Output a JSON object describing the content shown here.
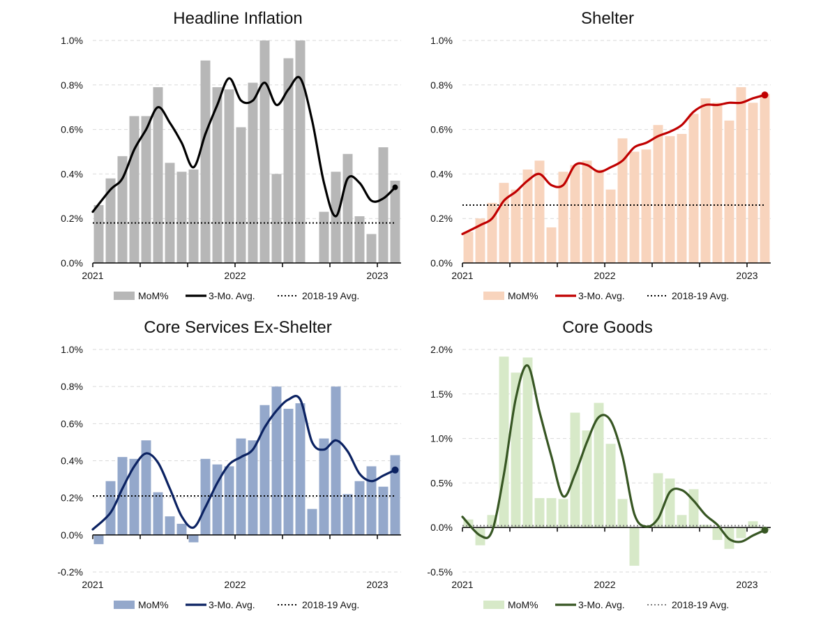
{
  "chart_data": [
    {
      "type": "bar",
      "title": "Headline Inflation",
      "colors": {
        "bar": "#b7b7b7",
        "line": "#000000",
        "ref": "#000000"
      },
      "ylim": [
        0,
        1.0
      ],
      "yticks": [
        0,
        0.2,
        0.4,
        0.6,
        0.8,
        1.0
      ],
      "ytick_labels": [
        "0.0%",
        "0.2%",
        "0.4%",
        "0.6%",
        "0.8%",
        "1.0%"
      ],
      "xtick_labels": [
        "2021",
        "2022",
        "2023"
      ],
      "months": [
        "2021-01",
        "2021-02",
        "2021-03",
        "2021-04",
        "2021-05",
        "2021-06",
        "2021-07",
        "2021-08",
        "2021-09",
        "2021-10",
        "2021-11",
        "2021-12",
        "2022-01",
        "2022-02",
        "2022-03",
        "2022-04",
        "2022-05",
        "2022-06",
        "2022-07",
        "2022-08",
        "2022-09",
        "2022-10",
        "2022-11",
        "2022-12",
        "2023-01",
        "2023-02"
      ],
      "series": [
        {
          "name": "MoM%",
          "kind": "bar",
          "values": [
            0.26,
            0.38,
            0.48,
            0.66,
            0.66,
            0.79,
            0.45,
            0.41,
            0.42,
            0.91,
            0.79,
            0.78,
            0.61,
            0.81,
            1.0,
            0.4,
            0.92,
            1.0,
            0.0,
            0.23,
            0.41,
            0.49,
            0.21,
            0.13,
            0.52,
            0.37
          ]
        },
        {
          "name": "3-Mo. Avg.",
          "kind": "line",
          "values": [
            0.23,
            0.33,
            0.38,
            0.51,
            0.6,
            0.7,
            0.63,
            0.54,
            0.43,
            0.58,
            0.71,
            0.83,
            0.73,
            0.73,
            0.81,
            0.71,
            0.78,
            0.83,
            0.64,
            0.36,
            0.21,
            0.38,
            0.36,
            0.28,
            0.29,
            0.34
          ]
        },
        {
          "name": "2018-19 Avg.",
          "kind": "ref",
          "value": 0.18
        }
      ]
    },
    {
      "type": "bar",
      "title": "Shelter",
      "colors": {
        "bar": "#f8d4bd",
        "line": "#c00000",
        "ref": "#000000"
      },
      "ylim": [
        0,
        1.0
      ],
      "yticks": [
        0,
        0.2,
        0.4,
        0.6,
        0.8,
        1.0
      ],
      "ytick_labels": [
        "0.0%",
        "0.2%",
        "0.4%",
        "0.6%",
        "0.8%",
        "1.0%"
      ],
      "xtick_labels": [
        "2021",
        "2022",
        "2023"
      ],
      "months": [
        "2021-01",
        "2021-02",
        "2021-03",
        "2021-04",
        "2021-05",
        "2021-06",
        "2021-07",
        "2021-08",
        "2021-09",
        "2021-10",
        "2021-11",
        "2021-12",
        "2022-01",
        "2022-02",
        "2022-03",
        "2022-04",
        "2022-05",
        "2022-06",
        "2022-07",
        "2022-08",
        "2022-09",
        "2022-10",
        "2022-11",
        "2022-12",
        "2023-01",
        "2023-02"
      ],
      "series": [
        {
          "name": "MoM%",
          "kind": "bar",
          "values": [
            0.14,
            0.2,
            0.27,
            0.36,
            0.33,
            0.42,
            0.46,
            0.16,
            0.41,
            0.44,
            0.46,
            0.42,
            0.33,
            0.56,
            0.5,
            0.51,
            0.62,
            0.57,
            0.58,
            0.67,
            0.74,
            0.72,
            0.64,
            0.79,
            0.72,
            0.76
          ]
        },
        {
          "name": "3-Mo. Avg.",
          "kind": "line",
          "values": [
            0.13,
            0.17,
            0.2,
            0.28,
            0.32,
            0.37,
            0.4,
            0.35,
            0.35,
            0.44,
            0.44,
            0.41,
            0.43,
            0.46,
            0.52,
            0.54,
            0.57,
            0.59,
            0.62,
            0.68,
            0.71,
            0.71,
            0.72,
            0.72,
            0.74,
            0.755
          ]
        },
        {
          "name": "2018-19 Avg.",
          "kind": "ref",
          "value": 0.26
        }
      ]
    },
    {
      "type": "bar",
      "title": "Core Services Ex-Shelter",
      "colors": {
        "bar": "#94a8cb",
        "line": "#0b2262",
        "ref": "#000000"
      },
      "ylim": [
        -0.2,
        1.0
      ],
      "yticks": [
        -0.2,
        0,
        0.2,
        0.4,
        0.6,
        0.8,
        1.0
      ],
      "ytick_labels": [
        "-0.2%",
        "0.0%",
        "0.2%",
        "0.4%",
        "0.6%",
        "0.8%",
        "1.0%"
      ],
      "xtick_labels": [
        "2021",
        "2022",
        "2023"
      ],
      "months": [
        "2021-01",
        "2021-02",
        "2021-03",
        "2021-04",
        "2021-05",
        "2021-06",
        "2021-07",
        "2021-08",
        "2021-09",
        "2021-10",
        "2021-11",
        "2021-12",
        "2022-01",
        "2022-02",
        "2022-03",
        "2022-04",
        "2022-05",
        "2022-06",
        "2022-07",
        "2022-08",
        "2022-09",
        "2022-10",
        "2022-11",
        "2022-12",
        "2023-01",
        "2023-02"
      ],
      "series": [
        {
          "name": "MoM%",
          "kind": "bar",
          "values": [
            -0.05,
            0.29,
            0.42,
            0.41,
            0.51,
            0.23,
            0.1,
            0.06,
            -0.04,
            0.41,
            0.38,
            0.37,
            0.52,
            0.51,
            0.7,
            0.8,
            0.68,
            0.71,
            0.14,
            0.52,
            0.8,
            0.22,
            0.29,
            0.37,
            0.26,
            0.43
          ]
        },
        {
          "name": "3-Mo. Avg.",
          "kind": "line",
          "values": [
            0.03,
            0.12,
            0.25,
            0.37,
            0.44,
            0.39,
            0.25,
            0.1,
            0.04,
            0.15,
            0.28,
            0.38,
            0.42,
            0.46,
            0.58,
            0.67,
            0.73,
            0.73,
            0.5,
            0.46,
            0.51,
            0.45,
            0.33,
            0.29,
            0.32,
            0.35
          ]
        },
        {
          "name": "2018-19 Avg.",
          "kind": "ref",
          "value": 0.21
        }
      ]
    },
    {
      "type": "bar",
      "title": "Core Goods",
      "colors": {
        "bar": "#d7e9c8",
        "line": "#375623",
        "ref": "#7f7f7f"
      },
      "ylim": [
        -0.5,
        2.0
      ],
      "yticks": [
        -0.5,
        0,
        0.5,
        1.0,
        1.5,
        2.0
      ],
      "ytick_labels": [
        "-0.5%",
        "0.0%",
        "0.5%",
        "1.0%",
        "1.5%",
        "2.0%"
      ],
      "xtick_labels": [
        "2021",
        "2022",
        "2023"
      ],
      "months": [
        "2021-01",
        "2021-02",
        "2021-03",
        "2021-04",
        "2021-05",
        "2021-06",
        "2021-07",
        "2021-08",
        "2021-09",
        "2021-10",
        "2021-11",
        "2021-12",
        "2022-01",
        "2022-02",
        "2022-03",
        "2022-04",
        "2022-05",
        "2022-06",
        "2022-07",
        "2022-08",
        "2022-09",
        "2022-10",
        "2022-11",
        "2022-12",
        "2023-01",
        "2023-02"
      ],
      "series": [
        {
          "name": "MoM%",
          "kind": "bar",
          "values": [
            0.09,
            -0.2,
            0.14,
            1.92,
            1.74,
            1.91,
            0.33,
            0.33,
            0.32,
            1.29,
            1.09,
            1.4,
            0.94,
            0.32,
            -0.43,
            0.01,
            0.61,
            0.55,
            0.14,
            0.43,
            0.03,
            -0.14,
            -0.24,
            -0.12,
            0.07,
            -0.03
          ]
        },
        {
          "name": "3-Mo. Avg.",
          "kind": "line",
          "values": [
            0.12,
            -0.09,
            -0.04,
            0.6,
            1.45,
            1.82,
            1.3,
            0.8,
            0.35,
            0.6,
            0.96,
            1.24,
            1.2,
            0.8,
            0.15,
            0.01,
            0.1,
            0.4,
            0.42,
            0.3,
            0.14,
            0.03,
            -0.13,
            -0.16,
            -0.09,
            -0.03
          ]
        },
        {
          "name": "2018-19 Avg.",
          "kind": "ref",
          "value": 0.02
        }
      ]
    }
  ]
}
